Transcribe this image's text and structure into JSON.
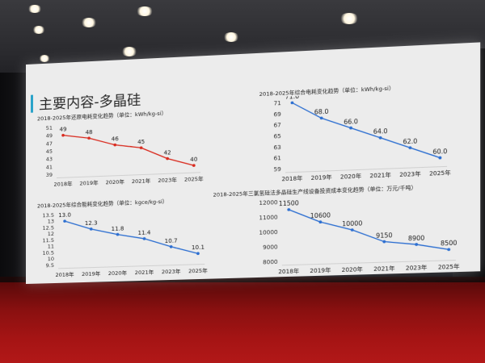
{
  "slide": {
    "title": "主要内容-多晶硅"
  },
  "chart_data": [
    {
      "type": "line",
      "title": "2018-2025年还原电耗变化趋势（单位：kWh/kg-si）",
      "categories": [
        "2018年",
        "2019年",
        "2020年",
        "2021年",
        "2023年",
        "2025年"
      ],
      "yticks": [
        "51",
        "49",
        "47",
        "45",
        "43",
        "41",
        "39"
      ],
      "ylim": [
        39,
        51
      ],
      "series": [
        {
          "values": [
            49,
            48,
            46,
            45,
            42,
            40
          ],
          "color": "#d92a1e"
        }
      ],
      "data_labels": [
        "49",
        "48",
        "46",
        "45",
        "42",
        "40"
      ]
    },
    {
      "type": "line",
      "title": "2018-2025年综合电耗变化趋势（单位：kWh/kg-si）",
      "categories": [
        "2018年",
        "2019年",
        "2020年",
        "2021年",
        "2023年",
        "2025年"
      ],
      "yticks": [
        "71",
        "69",
        "67",
        "65",
        "63",
        "61",
        "59"
      ],
      "ylim": [
        59,
        71
      ],
      "series": [
        {
          "values": [
            71.0,
            68.0,
            66.0,
            64.0,
            62.0,
            60.0
          ],
          "color": "#2d6fd1"
        }
      ],
      "data_labels": [
        "71.0",
        "68.0",
        "66.0",
        "64.0",
        "62.0",
        "60.0"
      ]
    },
    {
      "type": "line",
      "title": "2018-2025年综合能耗变化趋势（单位：kgce/kg-si）",
      "categories": [
        "2018年",
        "2019年",
        "2020年",
        "2021年",
        "2023年",
        "2025年"
      ],
      "yticks": [
        "13.5",
        "13",
        "12.5",
        "12",
        "11.5",
        "11",
        "10.5",
        "10",
        "9.5"
      ],
      "ylim": [
        9.5,
        13.5
      ],
      "series": [
        {
          "values": [
            13.0,
            12.3,
            11.8,
            11.4,
            10.7,
            10.1
          ],
          "color": "#2d6fd1"
        }
      ],
      "data_labels": [
        "13.0",
        "12.3",
        "11.8",
        "11.4",
        "10.7",
        "10.1"
      ]
    },
    {
      "type": "line",
      "title": "2018-2025年三氯氢硅法多晶硅生产线设备投资成本变化趋势（单位：万元/千吨）",
      "categories": [
        "2018年",
        "2019年",
        "2020年",
        "2021年",
        "2023年",
        "2025年"
      ],
      "yticks": [
        "12000",
        "11000",
        "10000",
        "9000",
        "8000"
      ],
      "ylim": [
        8000,
        12000
      ],
      "series": [
        {
          "values": [
            11500,
            10600,
            10000,
            9150,
            8900,
            8500
          ],
          "color": "#2d6fd1"
        }
      ],
      "data_labels": [
        "11500",
        "10600",
        "10000",
        "9150",
        "8900",
        "8500"
      ]
    }
  ]
}
